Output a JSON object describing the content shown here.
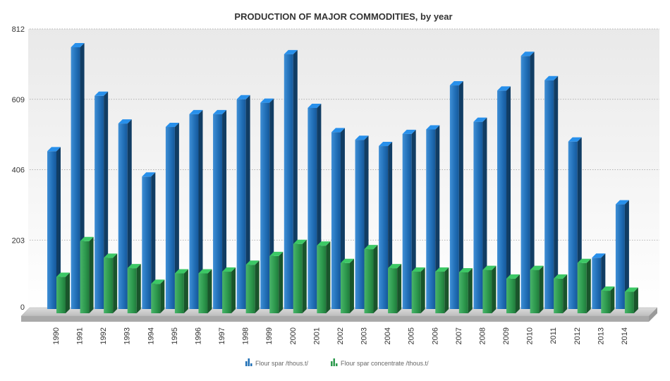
{
  "chart_data": {
    "type": "bar",
    "title": "PRODUCTION OF MAJOR COMMODITIES, by year",
    "xlabel": "",
    "ylabel": "",
    "categories": [
      "1990",
      "1991",
      "1992",
      "1993",
      "1994",
      "1995",
      "1996",
      "1997",
      "1998",
      "1999",
      "2000",
      "2001",
      "2002",
      "2003",
      "2004",
      "2005",
      "2006",
      "2007",
      "2008",
      "2009",
      "2010",
      "2011",
      "2012",
      "2013",
      "2014"
    ],
    "series": [
      {
        "name": "Flour spar /thous.t/",
        "color": "#1f6fb5",
        "values": [
          455,
          755,
          615,
          535,
          382,
          525,
          562,
          562,
          605,
          595,
          735,
          580,
          510,
          488,
          470,
          505,
          518,
          645,
          540,
          630,
          730,
          660,
          483,
          148,
          302
        ]
      },
      {
        "name": "Flour spar concentrate /thous.t/",
        "color": "#2e9a4e",
        "values": [
          105,
          208,
          160,
          130,
          85,
          115,
          115,
          120,
          140,
          165,
          200,
          195,
          145,
          185,
          130,
          120,
          120,
          118,
          125,
          100,
          125,
          100,
          145,
          65,
          62
        ]
      }
    ],
    "ylim": [
      0,
      812
    ],
    "yticks": [
      "0",
      "203",
      "406",
      "609",
      "812"
    ],
    "grid": true,
    "legend_position": "bottom"
  }
}
